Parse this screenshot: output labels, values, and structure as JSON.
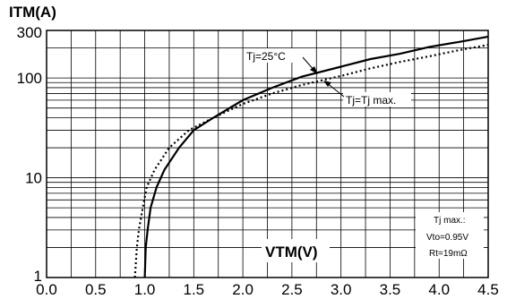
{
  "chart_data": {
    "type": "line",
    "ylabel": "ITM(A)",
    "xlabel": "VTM(V)",
    "x_range": [
      0.0,
      4.5
    ],
    "y_range": [
      1,
      300
    ],
    "y_scale": "log",
    "grid": true,
    "x_ticks": [
      "0.0",
      "0.5",
      "1.0",
      "1.5",
      "2.0",
      "2.5",
      "3.0",
      "3.5",
      "4.0",
      "4.5"
    ],
    "y_ticks": [
      "1",
      "10",
      "100",
      "300"
    ],
    "series": [
      {
        "name": "Tj=25°C",
        "style": "solid",
        "points": [
          [
            1.0,
            1
          ],
          [
            1.01,
            2
          ],
          [
            1.03,
            3
          ],
          [
            1.06,
            5
          ],
          [
            1.12,
            8
          ],
          [
            1.2,
            12
          ],
          [
            1.35,
            20
          ],
          [
            1.5,
            30
          ],
          [
            1.7,
            40
          ],
          [
            2.0,
            60
          ],
          [
            2.3,
            80
          ],
          [
            2.6,
            103
          ],
          [
            3.0,
            130
          ],
          [
            3.3,
            155
          ],
          [
            3.6,
            175
          ],
          [
            3.9,
            205
          ],
          [
            4.2,
            230
          ],
          [
            4.5,
            260
          ]
        ]
      },
      {
        "name": "Tj=Tj max.",
        "style": "dotted",
        "points": [
          [
            0.9,
            1
          ],
          [
            0.92,
            2
          ],
          [
            0.94,
            3
          ],
          [
            0.98,
            5
          ],
          [
            1.02,
            8
          ],
          [
            1.1,
            12
          ],
          [
            1.25,
            20
          ],
          [
            1.45,
            30
          ],
          [
            1.7,
            40
          ],
          [
            2.0,
            55
          ],
          [
            2.3,
            70
          ],
          [
            2.6,
            85
          ],
          [
            3.0,
            105
          ],
          [
            3.3,
            125
          ],
          [
            3.6,
            145
          ],
          [
            3.9,
            165
          ],
          [
            4.2,
            190
          ],
          [
            4.5,
            215
          ]
        ]
      }
    ],
    "annotations": [
      "Tj=25°C",
      "Tj=Tj max."
    ],
    "note": [
      "Tj max.:",
      "Vto=0.95V",
      "Rt=19mΩ"
    ]
  }
}
